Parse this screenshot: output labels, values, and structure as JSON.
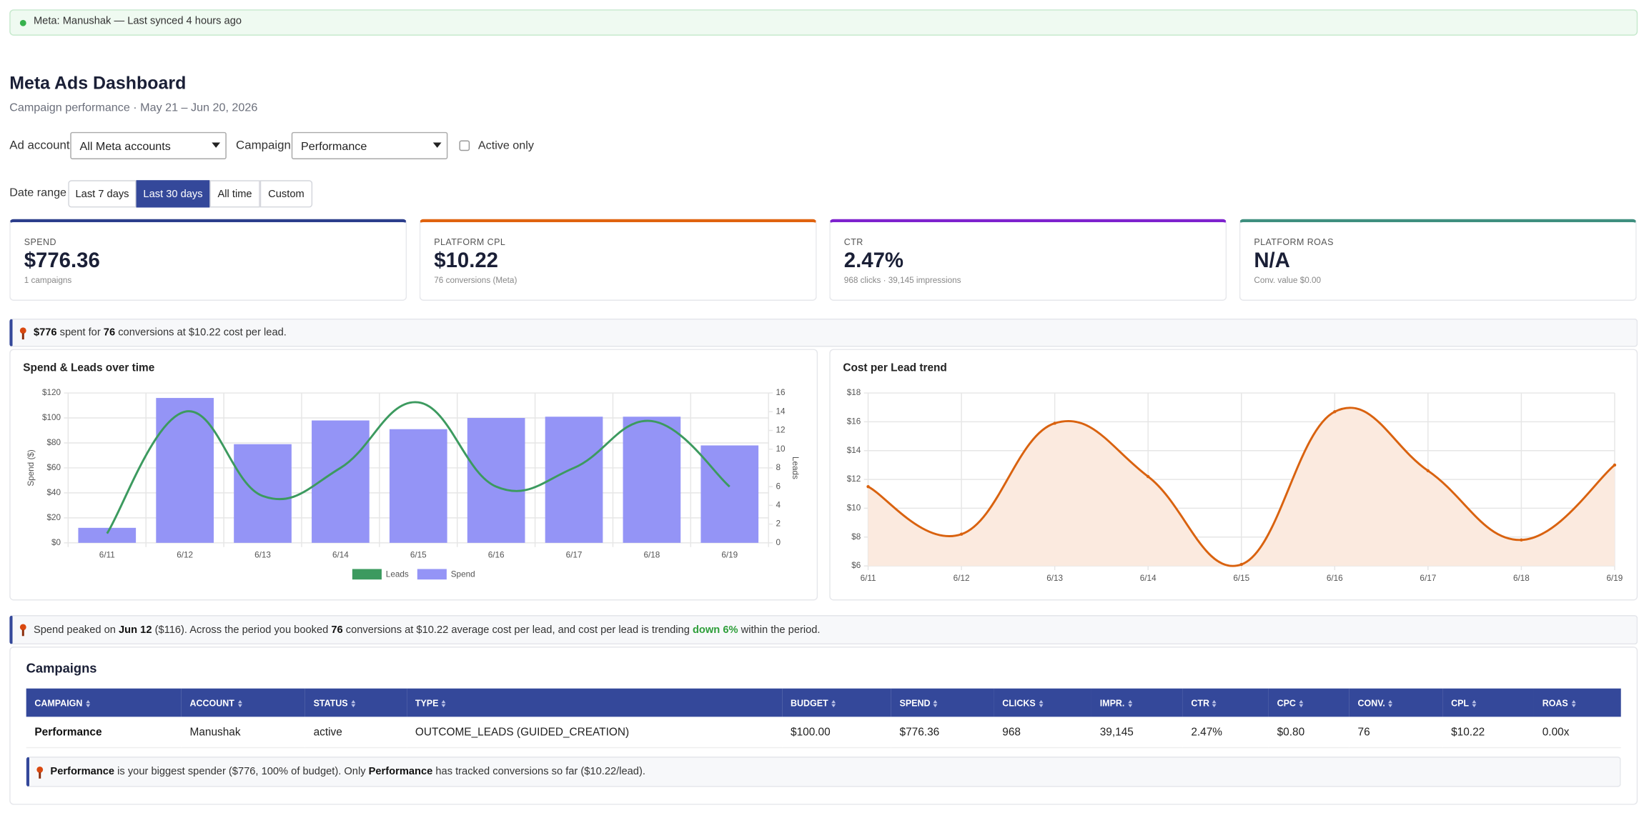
{
  "banner": {
    "text": "Meta: Manushak — Last synced 4 hours ago"
  },
  "header": {
    "title": "Meta Ads Dashboard",
    "subtitle": "Campaign performance · May 21 – Jun 20, 2026"
  },
  "filters": {
    "ad_account_label": "Ad account",
    "ad_account_value": "All Meta accounts",
    "campaign_label": "Campaign",
    "campaign_value": "Performance",
    "active_only_label": "Active only",
    "date_range_label": "Date range",
    "date_ranges": [
      "Last 7 days",
      "Last 30 days",
      "All time",
      "Custom"
    ],
    "selected_range": 1
  },
  "kpis": [
    {
      "label": "Spend",
      "value": "$776.36",
      "sub": "1 campaigns",
      "color": "#2c3e8c"
    },
    {
      "label": "Platform CPL",
      "value": "$10.22",
      "sub": "76 conversions (Meta)",
      "color": "#e0630f"
    },
    {
      "label": "CTR",
      "value": "2.47%",
      "sub": "968 clicks · 39,145 impressions",
      "color": "#7e22ce"
    },
    {
      "label": "Platform ROAS",
      "value": "N/A",
      "sub": "Conv. value $0.00",
      "color": "#3f8f7f"
    }
  ],
  "insights": [
    {
      "parts": [
        {
          "text": "$776",
          "emphasis": "bold"
        },
        {
          "text": " spent for "
        },
        {
          "text": "76",
          "emphasis": "bold"
        },
        {
          "text": " conversions at $10.22 cost per lead."
        }
      ]
    },
    {
      "parts": [
        {
          "text": "Spend peaked on "
        },
        {
          "text": "Jun 12",
          "emphasis": "bold"
        },
        {
          "text": " ($116). Across the period you booked "
        },
        {
          "text": "76",
          "emphasis": "bold"
        },
        {
          "text": " conversions at $10.22 average cost per lead, and cost per lead is trending "
        },
        {
          "text": "down 6%",
          "emphasis": "positive"
        },
        {
          "text": " within the period."
        }
      ]
    }
  ],
  "chart_data": [
    {
      "type": "combo",
      "title": "Spend & Leads over time",
      "categories": [
        "6/11",
        "6/12",
        "6/13",
        "6/14",
        "6/15",
        "6/16",
        "6/17",
        "6/18",
        "6/19"
      ],
      "series": [
        {
          "name": "Leads",
          "type": "line",
          "color": "#3c9a5f",
          "axis": "y2",
          "values": [
            1,
            14,
            5,
            8,
            15,
            6,
            8,
            13,
            6
          ]
        },
        {
          "name": "Spend",
          "type": "bar",
          "color": "#9494f6",
          "values": [
            12,
            116,
            79,
            98,
            91,
            100,
            101,
            101,
            78
          ]
        }
      ],
      "ylabel": "Spend ($)",
      "y2label": "Leads",
      "ylim": [
        0,
        120
      ],
      "yticks": [
        {
          "value": 0,
          "label": "$0"
        },
        {
          "value": 20,
          "label": "$20"
        },
        {
          "value": 40,
          "label": "$40"
        },
        {
          "value": 60,
          "label": "$60"
        },
        {
          "value": 80,
          "label": "$80"
        },
        {
          "value": 100,
          "label": "$100"
        },
        {
          "value": 120,
          "label": "$120"
        }
      ],
      "y2lim": [
        0,
        16
      ],
      "y2ticks": [
        0,
        2,
        4,
        6,
        8,
        10,
        12,
        14,
        16
      ],
      "grid": true,
      "legend": "bottom"
    },
    {
      "type": "area",
      "title": "Cost per Lead trend",
      "categories": [
        "6/11",
        "6/12",
        "6/13",
        "6/14",
        "6/15",
        "6/16",
        "6/17",
        "6/18",
        "6/19"
      ],
      "values": [
        11.5,
        8.2,
        15.9,
        12.2,
        6.1,
        16.7,
        12.6,
        7.8,
        13
      ],
      "color": "#d9620f",
      "fill": "#fbeadf",
      "ylim": [
        6,
        18
      ],
      "yticks": [
        {
          "value": 6,
          "label": "$6"
        },
        {
          "value": 8,
          "label": "$8"
        },
        {
          "value": 10,
          "label": "$10"
        },
        {
          "value": 12,
          "label": "$12"
        },
        {
          "value": 14,
          "label": "$14"
        },
        {
          "value": 16,
          "label": "$16"
        },
        {
          "value": 18,
          "label": "$18"
        }
      ],
      "grid": true
    }
  ],
  "table": {
    "title": "Campaigns",
    "columns": [
      "CAMPAIGN",
      "ACCOUNT",
      "STATUS",
      "TYPE",
      "BUDGET",
      "SPEND",
      "CLICKS",
      "IMPR.",
      "CTR",
      "CPC",
      "CONV.",
      "CPL",
      "ROAS"
    ],
    "rows": [
      [
        "Performance",
        "Manushak",
        "active",
        "OUTCOME_LEADS (GUIDED_CREATION)",
        "$100.00",
        "$776.36",
        "968",
        "39,145",
        "2.47%",
        "$0.80",
        "76",
        "$10.22",
        "0.00x"
      ]
    ],
    "insight": {
      "parts": [
        {
          "text": "Performance",
          "emphasis": "bold"
        },
        {
          "text": " is your biggest spender ($776, 100% of budget). Only "
        },
        {
          "text": "Performance",
          "emphasis": "bold"
        },
        {
          "text": " has tracked conversions so far ($10.22/lead)."
        }
      ]
    }
  }
}
